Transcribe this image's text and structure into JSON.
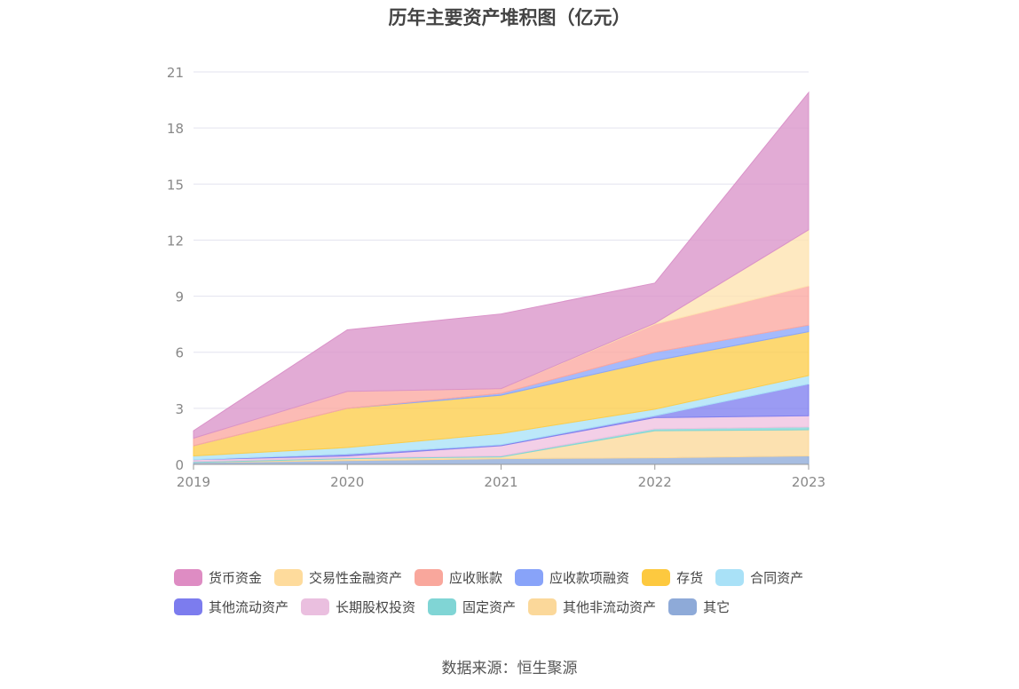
{
  "chart_data": {
    "type": "area",
    "stacked": true,
    "title": "历年主要资产堆积图（亿元）",
    "x": [
      "2019",
      "2020",
      "2021",
      "2022",
      "2023"
    ],
    "ylim": [
      0,
      21
    ],
    "yticks": [
      0,
      3,
      6,
      9,
      12,
      15,
      18,
      21
    ],
    "grid": true,
    "legend_position": "bottom",
    "series": [
      {
        "name": "其它",
        "color": "#8eaad8",
        "values": [
          0.1,
          0.2,
          0.3,
          0.35,
          0.45
        ]
      },
      {
        "name": "其他非流动资产",
        "color": "#fbd89a",
        "values": [
          0.0,
          0.1,
          0.1,
          1.45,
          1.4
        ]
      },
      {
        "name": "固定资产",
        "color": "#7fd6d6",
        "values": [
          0.05,
          0.05,
          0.05,
          0.1,
          0.15
        ]
      },
      {
        "name": "长期股权投资",
        "color": "#efc1e0",
        "values": [
          0.1,
          0.1,
          0.55,
          0.6,
          0.6
        ]
      },
      {
        "name": "其他流动资产",
        "color": "#7f7fef",
        "values": [
          0.0,
          0.1,
          0.05,
          0.1,
          1.7
        ]
      },
      {
        "name": "合同资产",
        "color": "#a9e1f7",
        "values": [
          0.2,
          0.35,
          0.6,
          0.35,
          0.45
        ]
      },
      {
        "name": "存货",
        "color": "#fdcd4a",
        "values": [
          0.55,
          2.1,
          2.05,
          2.6,
          2.35
        ]
      },
      {
        "name": "应收款项融资",
        "color": "#8aa6fb",
        "values": [
          0.0,
          0.0,
          0.1,
          0.45,
          0.35
        ]
      },
      {
        "name": "应收账款",
        "color": "#fba8a0",
        "values": [
          0.4,
          0.9,
          0.25,
          1.5,
          2.1
        ]
      },
      {
        "name": "交易性金融资产",
        "color": "#fee3b0",
        "values": [
          0.0,
          0.0,
          0.0,
          0.05,
          3.0
        ]
      },
      {
        "name": "货币资金",
        "color": "#da93c9",
        "values": [
          0.4,
          3.3,
          4.0,
          2.15,
          7.35
        ]
      }
    ]
  },
  "legend": [
    {
      "label": "货币资金",
      "color": "#de8cc3"
    },
    {
      "label": "交易性金融资产",
      "color": "#fedb9c"
    },
    {
      "label": "应收账款",
      "color": "#f9a79c"
    },
    {
      "label": "应收款项融资",
      "color": "#88a3f9"
    },
    {
      "label": "存货",
      "color": "#fdc93f"
    },
    {
      "label": "合同资产",
      "color": "#a9e1f7"
    },
    {
      "label": "其他流动资产",
      "color": "#7c7cee"
    },
    {
      "label": "长期股权投资",
      "color": "#eabfdf"
    },
    {
      "label": "固定资产",
      "color": "#80d5d5"
    },
    {
      "label": "其他非流动资产",
      "color": "#fbd89a"
    },
    {
      "label": "其它",
      "color": "#8eaad8"
    }
  ],
  "source": "数据来源：恒生聚源"
}
